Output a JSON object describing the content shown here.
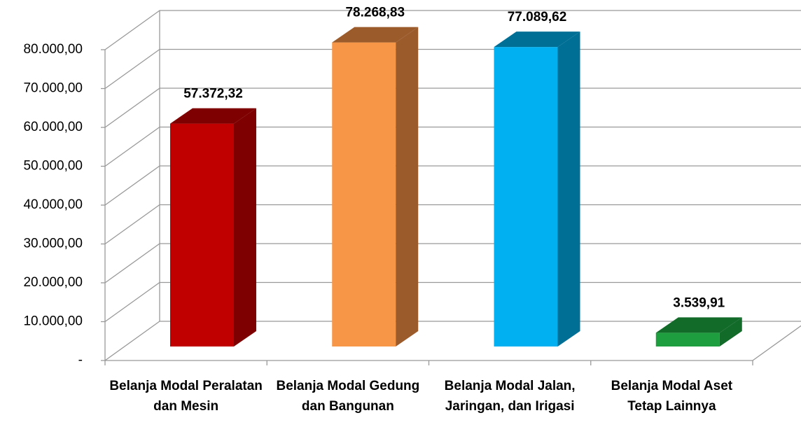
{
  "chart_data": {
    "type": "bar3d",
    "categories": [
      "Belanja Modal Peralatan dan Mesin",
      "Belanja Modal Gedung dan Bangunan",
      "Belanja Modal Jalan, Jaringan, dan Irigasi",
      "Belanja Modal Aset Tetap Lainnya"
    ],
    "values": [
      57372.32,
      78268.83,
      77089.62,
      3539.91
    ],
    "value_labels": [
      "57.372,32",
      "78.268,83",
      "77.089,62",
      "3.539,91"
    ],
    "colors": [
      "#c00000",
      "#f79646",
      "#00b0f0",
      "#1e9e3e"
    ],
    "side_colors": [
      "#7f0000",
      "#9c5b2b",
      "#006f96",
      "#136b2a"
    ],
    "ylim": [
      0,
      80000
    ],
    "yticks": [
      {
        "value": 0,
        "label": "-"
      },
      {
        "value": 10000,
        "label": "10.000,00"
      },
      {
        "value": 20000,
        "label": "20.000,00"
      },
      {
        "value": 30000,
        "label": "30.000,00"
      },
      {
        "value": 40000,
        "label": "40.000,00"
      },
      {
        "value": 50000,
        "label": "50.000,00"
      },
      {
        "value": 60000,
        "label": "60.000,00"
      },
      {
        "value": 70000,
        "label": "70.000,00"
      },
      {
        "value": 80000,
        "label": "80.000,00"
      }
    ],
    "grid": true
  }
}
